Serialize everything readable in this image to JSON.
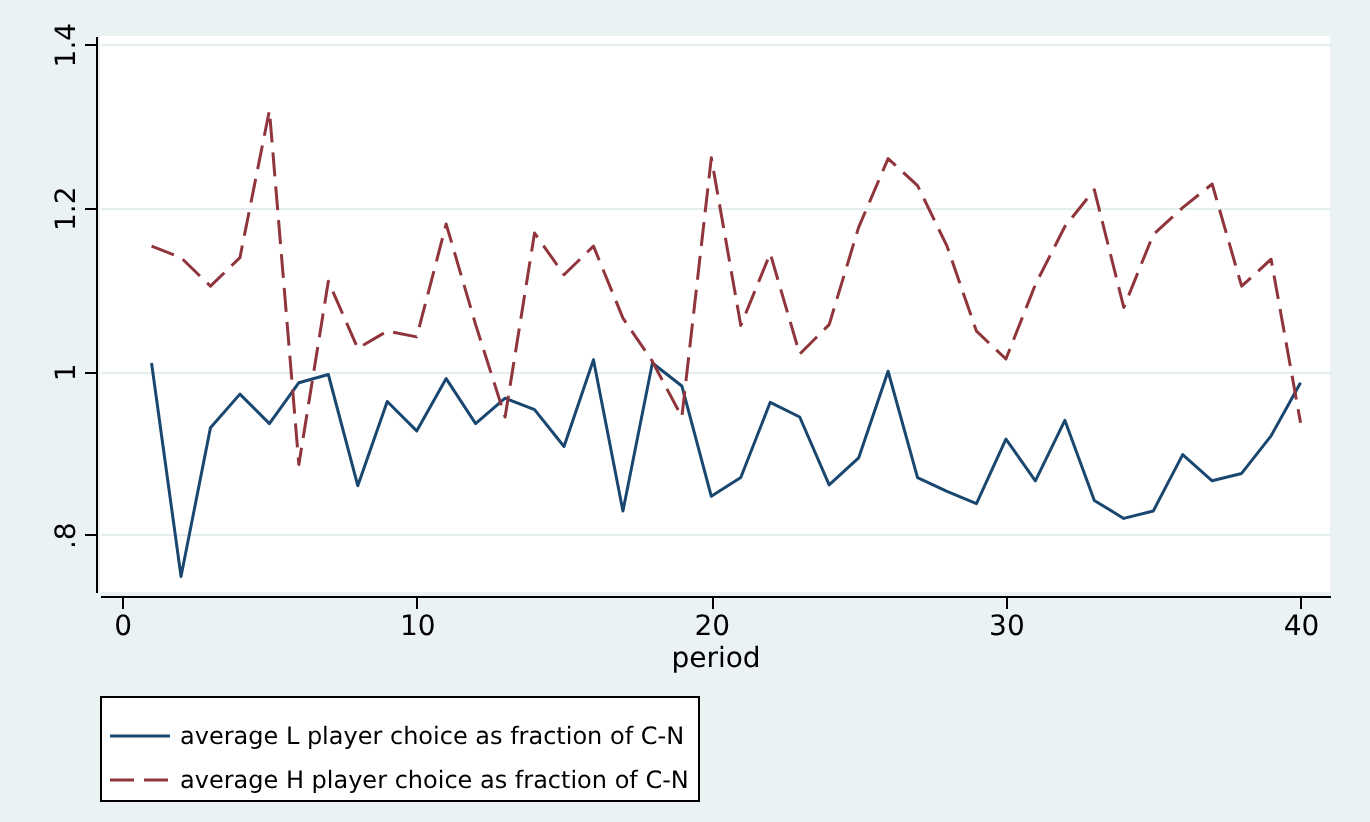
{
  "chart_data": {
    "type": "line",
    "xlabel": "period",
    "x": [
      1,
      2,
      3,
      4,
      5,
      6,
      7,
      8,
      9,
      10,
      11,
      12,
      13,
      14,
      15,
      16,
      17,
      18,
      19,
      20,
      21,
      22,
      23,
      24,
      25,
      26,
      27,
      28,
      29,
      30,
      31,
      32,
      33,
      34,
      35,
      36,
      37,
      38,
      39,
      40
    ],
    "series": [
      {
        "name": "average L player choice as fraction of C-N",
        "color": "#1a476f",
        "line_style": "solid",
        "values": [
          1.01,
          0.749,
          0.931,
          0.972,
          0.936,
          0.986,
          0.996,
          0.86,
          0.963,
          0.927,
          0.991,
          0.936,
          0.967,
          0.953,
          0.908,
          1.014,
          0.829,
          1.01,
          0.982,
          0.847,
          0.87,
          0.962,
          0.944,
          0.861,
          0.894,
          1.0,
          0.87,
          0.853,
          0.838,
          0.917,
          0.866,
          0.94,
          0.842,
          0.82,
          0.829,
          0.898,
          0.866,
          0.875,
          0.921,
          0.986
        ]
      },
      {
        "name": "average H player choice as fraction of C-N",
        "color": "#90353b",
        "line_style": "dashed",
        "values": [
          1.153,
          1.139,
          1.104,
          1.139,
          1.319,
          0.886,
          1.11,
          1.028,
          1.049,
          1.042,
          1.18,
          1.057,
          0.944,
          1.169,
          1.118,
          1.153,
          1.065,
          1.012,
          0.944,
          1.261,
          1.056,
          1.144,
          1.021,
          1.057,
          1.176,
          1.26,
          1.227,
          1.153,
          1.049,
          1.015,
          1.106,
          1.177,
          1.222,
          1.078,
          1.167,
          1.2,
          1.229,
          1.104,
          1.137,
          0.937
        ]
      }
    ],
    "xlim": [
      -0.75,
      41
    ],
    "xticks": [
      0,
      10,
      20,
      30,
      40
    ],
    "ylim": [
      0.73,
      1.41
    ],
    "yticks": [
      {
        "value": 0.8,
        "label": ".8"
      },
      1,
      1.2,
      1.4
    ],
    "grid": "y",
    "legend": "bottom",
    "marker": "none"
  }
}
